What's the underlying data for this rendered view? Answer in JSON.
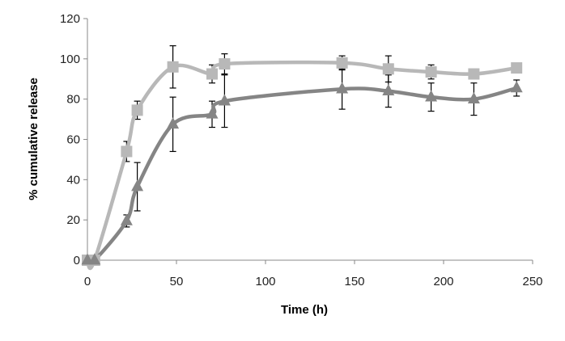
{
  "chart_data": {
    "type": "line",
    "title": "",
    "xlabel": "Time (h)",
    "ylabel": "% cumulative release",
    "xlim": [
      0,
      250
    ],
    "ylim": [
      0,
      120
    ],
    "x_ticks": [
      0,
      50,
      100,
      150,
      200,
      250
    ],
    "y_ticks": [
      0,
      20,
      40,
      60,
      80,
      100,
      120
    ],
    "grid": false,
    "legend": "none",
    "series": [
      {
        "marker": "square",
        "color": "#b8b8b8",
        "x": [
          0,
          4,
          22,
          28,
          48,
          70,
          77,
          143,
          169,
          193,
          217,
          241
        ],
        "y": [
          0,
          0,
          54,
          74.5,
          96,
          92.5,
          97.5,
          98,
          95,
          93.5,
          92.5,
          95.5
        ],
        "error": [
          0,
          0,
          5,
          4.5,
          10.5,
          4.5,
          5,
          3.5,
          6.5,
          3.5,
          0,
          0
        ]
      },
      {
        "marker": "triangle",
        "color": "#858585",
        "x": [
          0,
          4,
          22,
          28,
          48,
          70,
          77,
          143,
          169,
          193,
          217,
          241
        ],
        "y": [
          0,
          0,
          19.5,
          36.5,
          67.5,
          72.5,
          79,
          85,
          84,
          81,
          80,
          85.5
        ],
        "error": [
          0,
          0,
          3,
          12,
          13.5,
          6.5,
          13,
          10,
          8,
          7,
          8,
          4
        ]
      }
    ]
  }
}
